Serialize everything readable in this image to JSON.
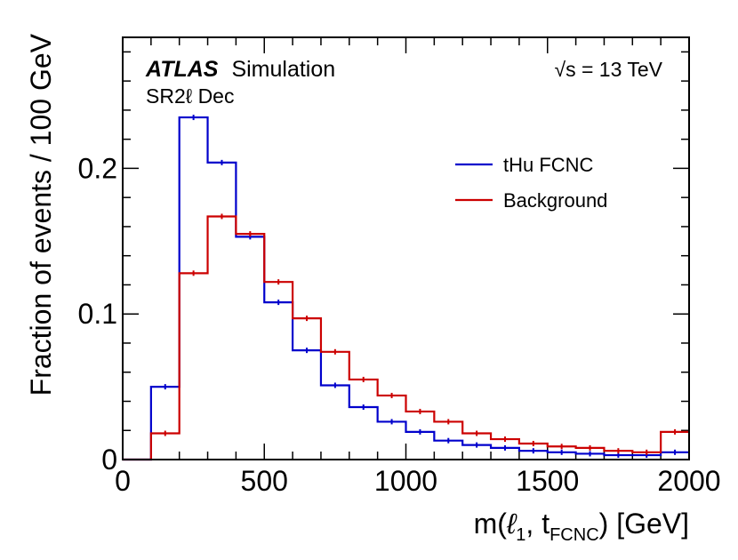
{
  "chart_data": {
    "type": "line",
    "step": true,
    "experiment": "ATLAS",
    "experiment_suffix": "Simulation",
    "region": "SR2ℓ Dec",
    "energy": "√s = 13 TeV",
    "xlabel": "m(ℓ₁, t_FCNC) [GeV]",
    "xlabel_parts": {
      "pre": "m(",
      "ell": "ℓ",
      "ell_sub": "1",
      "mid": ", t",
      "t_sub": "FCNC",
      "post": ") [GeV]"
    },
    "ylabel": "Fraction of events / 100 GeV",
    "xlim": [
      0,
      2000
    ],
    "ylim": [
      0,
      0.29
    ],
    "x_ticks": [
      "0",
      "500",
      "1000",
      "1500",
      "2000"
    ],
    "y_ticks": [
      "0",
      "0.1",
      "0.2"
    ],
    "grid": false,
    "legend_position": "top-right",
    "bin_edges": [
      0,
      100,
      200,
      300,
      400,
      500,
      600,
      700,
      800,
      900,
      1000,
      1100,
      1200,
      1300,
      1400,
      1500,
      1600,
      1700,
      1800,
      1900,
      2000
    ],
    "series": [
      {
        "name": "tHu FCNC",
        "color": "#0000cc",
        "values": [
          0.0,
          0.05,
          0.235,
          0.204,
          0.153,
          0.108,
          0.075,
          0.051,
          0.036,
          0.026,
          0.019,
          0.013,
          0.01,
          0.008,
          0.006,
          0.005,
          0.004,
          0.003,
          0.003,
          0.005
        ]
      },
      {
        "name": "Background",
        "color": "#cc0000",
        "values": [
          0.0,
          0.018,
          0.128,
          0.167,
          0.155,
          0.122,
          0.097,
          0.074,
          0.055,
          0.044,
          0.033,
          0.026,
          0.018,
          0.014,
          0.011,
          0.009,
          0.008,
          0.006,
          0.005,
          0.019
        ]
      }
    ]
  }
}
